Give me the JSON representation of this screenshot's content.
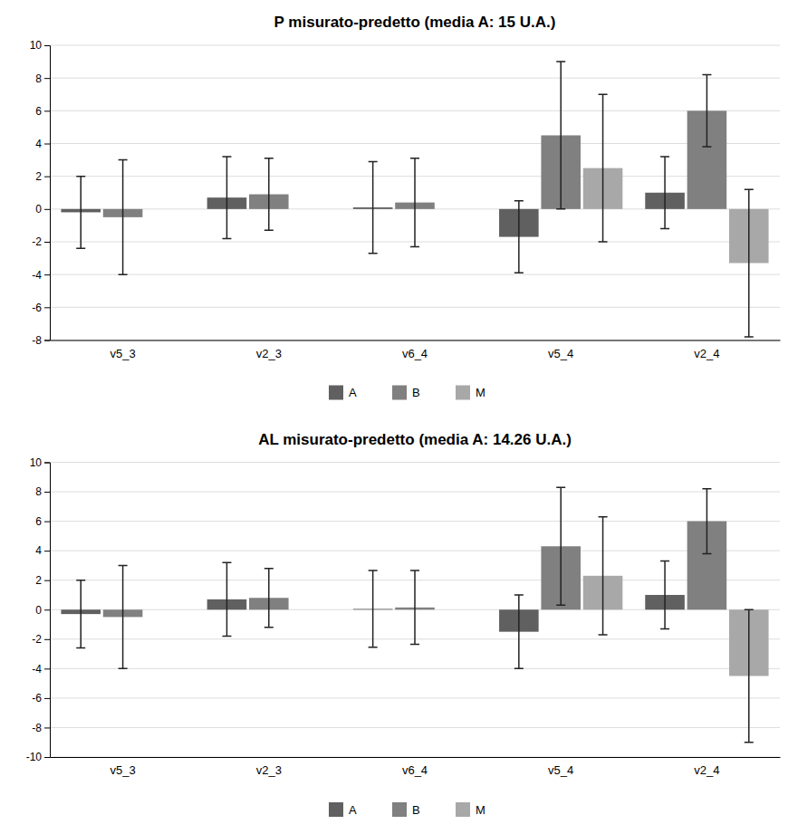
{
  "chart_data": [
    {
      "type": "bar",
      "title": "P misurato-predetto (media A: 15 U.A.)",
      "categories": [
        "v5_3",
        "v2_3",
        "v6_4",
        "v5_4",
        "v2_4"
      ],
      "series": [
        {
          "name": "A",
          "color": "#606060",
          "values": [
            -0.2,
            0.7,
            0.1,
            -1.7,
            1.0
          ],
          "errors": [
            2.2,
            2.5,
            2.8,
            2.2,
            2.2
          ]
        },
        {
          "name": "B",
          "color": "#808080",
          "values": [
            -0.5,
            0.9,
            0.4,
            4.5,
            6.0
          ],
          "errors": [
            3.5,
            2.2,
            2.7,
            4.5,
            2.2
          ]
        },
        {
          "name": "M",
          "color": "#a8a8a8",
          "values": [
            null,
            null,
            null,
            2.5,
            -3.3
          ],
          "errors": [
            null,
            null,
            null,
            4.5,
            4.5
          ]
        }
      ],
      "ylim": [
        -8,
        10
      ],
      "yticks": [
        -8,
        -6,
        -4,
        -2,
        0,
        2,
        4,
        6,
        8,
        10
      ],
      "grid": true,
      "legend": "bottom"
    },
    {
      "type": "bar",
      "title": "AL misurato-predetto (media A: 14.26 U.A.)",
      "categories": [
        "v5_3",
        "v2_3",
        "v6_4",
        "v5_4",
        "v2_4"
      ],
      "series": [
        {
          "name": "A",
          "color": "#606060",
          "values": [
            -0.3,
            0.7,
            0.05,
            -1.5,
            1.0
          ],
          "errors": [
            2.3,
            2.5,
            2.6,
            2.5,
            2.3
          ]
        },
        {
          "name": "B",
          "color": "#808080",
          "values": [
            -0.5,
            0.8,
            0.15,
            4.3,
            6.0
          ],
          "errors": [
            3.5,
            2.0,
            2.5,
            4.0,
            2.2
          ]
        },
        {
          "name": "M",
          "color": "#a8a8a8",
          "values": [
            null,
            null,
            null,
            2.3,
            -4.5
          ],
          "errors": [
            null,
            null,
            null,
            4.0,
            4.5
          ]
        }
      ],
      "ylim": [
        -10,
        10
      ],
      "yticks": [
        -10,
        -8,
        -6,
        -4,
        -2,
        0,
        2,
        4,
        6,
        8,
        10
      ],
      "grid": true,
      "legend": "bottom"
    }
  ]
}
